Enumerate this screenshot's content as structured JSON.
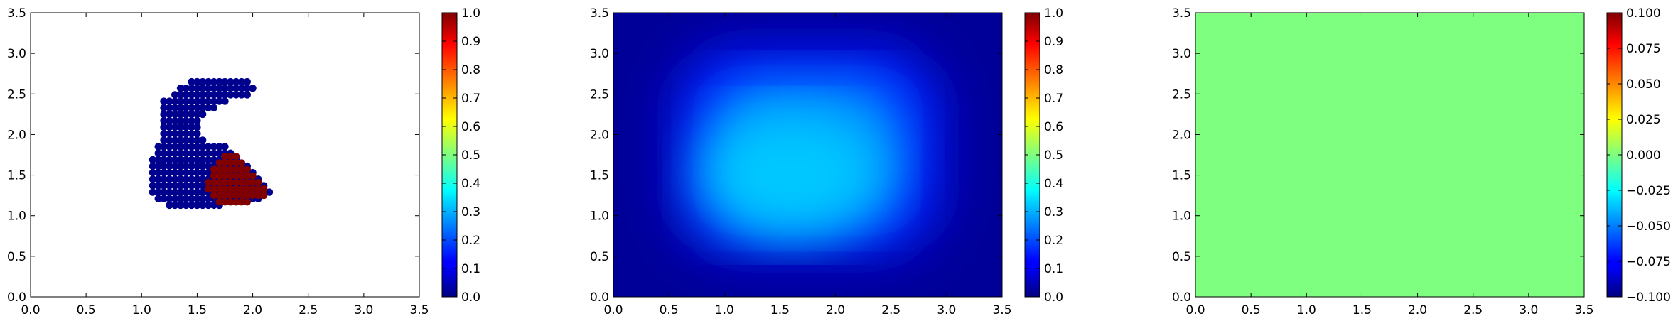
{
  "chart_data": [
    {
      "type": "scatter",
      "xlim": [
        0,
        3.5
      ],
      "ylim": [
        0,
        3.5
      ],
      "xticks": [
        "0.0",
        "0.5",
        "1.0",
        "1.5",
        "2.0",
        "2.5",
        "3.0",
        "3.5"
      ],
      "yticks": [
        "0.0",
        "0.5",
        "1.0",
        "1.5",
        "2.0",
        "2.5",
        "3.0",
        "3.5"
      ],
      "grid": false,
      "colorbar": {
        "colormap": "jet",
        "range": [
          0,
          1
        ],
        "ticks": [
          "0.0",
          "0.1",
          "0.2",
          "0.3",
          "0.4",
          "0.5",
          "0.6",
          "0.7",
          "0.8",
          "0.9",
          "1.0"
        ]
      },
      "series": [
        {
          "value": 0.0,
          "color": "#00008f",
          "description_of_region": "C-shaped cluster",
          "rows": [
            {
              "y": 2.65,
              "x": [
                1.45,
                1.95
              ]
            },
            {
              "y": 2.57,
              "x": [
                1.35,
                2.0
              ]
            },
            {
              "y": 2.49,
              "x": [
                1.3,
                1.95
              ]
            },
            {
              "y": 2.41,
              "x": [
                1.2,
                1.75
              ]
            },
            {
              "y": 2.33,
              "x": [
                1.2,
                1.65
              ]
            },
            {
              "y": 2.25,
              "x": [
                1.2,
                1.55
              ]
            },
            {
              "y": 2.17,
              "x": [
                1.2,
                1.5
              ]
            },
            {
              "y": 2.09,
              "x": [
                1.2,
                1.5
              ]
            },
            {
              "y": 2.01,
              "x": [
                1.2,
                1.5
              ]
            },
            {
              "y": 1.93,
              "x": [
                1.2,
                1.55
              ]
            },
            {
              "y": 1.85,
              "x": [
                1.15,
                1.75
              ]
            },
            {
              "y": 1.77,
              "x": [
                1.15,
                1.8
              ]
            },
            {
              "y": 1.69,
              "x": [
                1.1,
                1.85
              ]
            },
            {
              "y": 1.61,
              "x": [
                1.1,
                1.95
              ]
            },
            {
              "y": 1.53,
              "x": [
                1.1,
                2.0
              ]
            },
            {
              "y": 1.45,
              "x": [
                1.1,
                2.05
              ]
            },
            {
              "y": 1.37,
              "x": [
                1.1,
                2.1
              ]
            },
            {
              "y": 1.29,
              "x": [
                1.1,
                2.15
              ]
            },
            {
              "y": 1.21,
              "x": [
                1.15,
                2.05
              ]
            },
            {
              "y": 1.13,
              "x": [
                1.25,
                1.7
              ]
            }
          ]
        },
        {
          "value": 1.0,
          "color": "#800000",
          "rows": [
            {
              "y": 1.73,
              "x": [
                1.75,
                1.85
              ]
            },
            {
              "y": 1.65,
              "x": [
                1.7,
                1.9
              ]
            },
            {
              "y": 1.57,
              "x": [
                1.65,
                1.95
              ]
            },
            {
              "y": 1.49,
              "x": [
                1.65,
                2.0
              ]
            },
            {
              "y": 1.41,
              "x": [
                1.6,
                2.05
              ]
            },
            {
              "y": 1.33,
              "x": [
                1.6,
                2.1
              ]
            },
            {
              "y": 1.25,
              "x": [
                1.65,
                2.1
              ]
            },
            {
              "y": 1.17,
              "x": [
                1.7,
                1.95
              ]
            }
          ]
        }
      ]
    },
    {
      "type": "heatmap",
      "xlim": [
        0,
        3.5
      ],
      "ylim": [
        0,
        3.5
      ],
      "xticks": [
        "0.0",
        "0.5",
        "1.0",
        "1.5",
        "2.0",
        "2.5",
        "3.0",
        "3.5"
      ],
      "yticks": [
        "0.0",
        "0.5",
        "1.0",
        "1.5",
        "2.0",
        "2.5",
        "3.0",
        "3.5"
      ],
      "grid": false,
      "colorbar": {
        "colormap": "jet",
        "range": [
          0,
          1
        ],
        "ticks": [
          "0.0",
          "0.1",
          "0.2",
          "0.3",
          "0.4",
          "0.5",
          "0.6",
          "0.7",
          "0.8",
          "0.9",
          "1.0"
        ]
      },
      "field": {
        "edge_value": 0.02,
        "peak_value": 0.35,
        "peak_location": [
          1.6,
          1.5
        ],
        "plateau_x": [
          1.0,
          2.5
        ],
        "plateau_y": [
          1.0,
          2.6
        ]
      }
    },
    {
      "type": "heatmap",
      "xlim": [
        0,
        3.5
      ],
      "ylim": [
        0,
        3.5
      ],
      "xticks": [
        "0.0",
        "0.5",
        "1.0",
        "1.5",
        "2.0",
        "2.5",
        "3.0",
        "3.5"
      ],
      "yticks": [
        "0.0",
        "0.5",
        "1.0",
        "1.5",
        "2.0",
        "2.5",
        "3.0",
        "3.5"
      ],
      "grid": false,
      "colorbar": {
        "colormap": "jet",
        "range": [
          -0.1,
          0.1
        ],
        "ticks": [
          "−0.100",
          "−0.075",
          "−0.050",
          "−0.025",
          "0.000",
          "0.025",
          "0.050",
          "0.075",
          "0.100"
        ]
      },
      "field": {
        "uniform_value": 0.0,
        "color": "#7fff7f"
      }
    }
  ]
}
